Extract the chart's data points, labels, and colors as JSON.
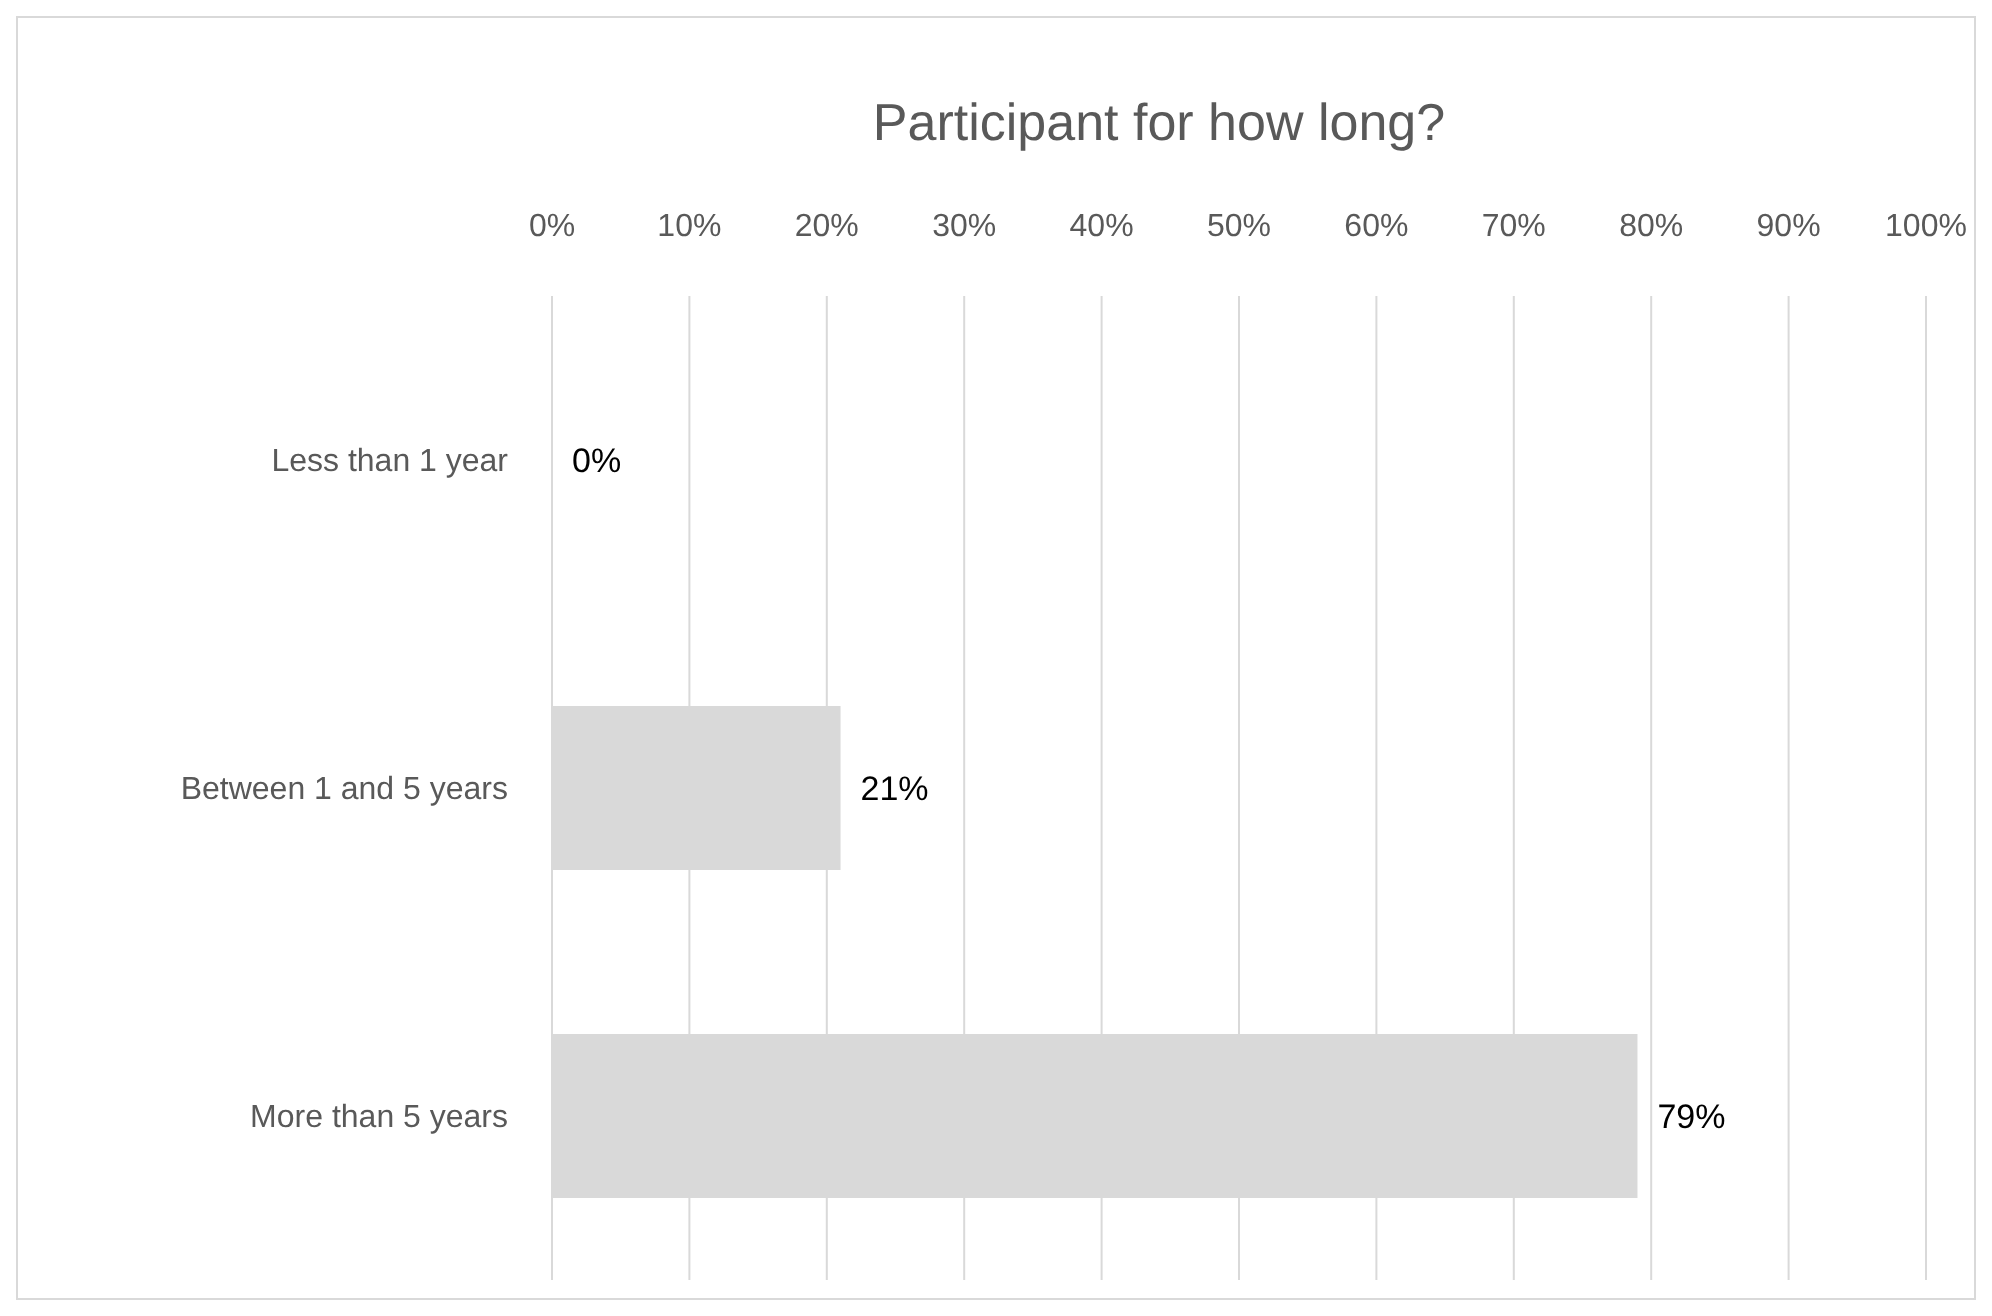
{
  "chart_data": {
    "type": "bar",
    "orientation": "horizontal",
    "title": "Participant for how long?",
    "categories": [
      "Less than 1 year",
      "Between 1 and 5 years",
      "More than 5 years"
    ],
    "values": [
      0,
      21,
      79
    ],
    "color": "#d9d9d9",
    "value_labels": [
      "0%",
      "21%",
      "79%"
    ],
    "xlim": [
      0,
      100
    ],
    "xticks": [
      {
        "value": 0,
        "label": "0%"
      },
      {
        "value": 10,
        "label": "10%"
      },
      {
        "value": 20,
        "label": "20%"
      },
      {
        "value": 30,
        "label": "30%"
      },
      {
        "value": 40,
        "label": "40%"
      },
      {
        "value": 50,
        "label": "50%"
      },
      {
        "value": 60,
        "label": "60%"
      },
      {
        "value": 70,
        "label": "70%"
      },
      {
        "value": 80,
        "label": "80%"
      },
      {
        "value": 90,
        "label": "90%"
      },
      {
        "value": 100,
        "label": "100%"
      }
    ],
    "grid": "x"
  }
}
